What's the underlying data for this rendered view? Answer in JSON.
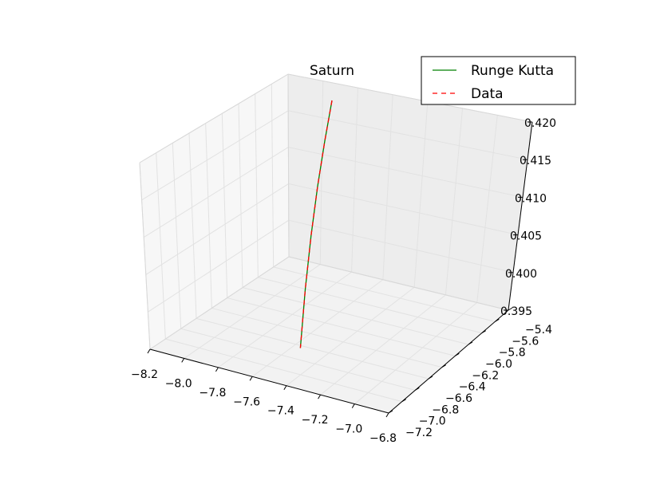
{
  "chart_data": {
    "type": "line",
    "projection": "3d",
    "title": "Saturn",
    "grid": true,
    "legend_placement": "top-right",
    "x_axis": {
      "range": [
        -8.2,
        -6.8
      ],
      "ticks": [
        "−8.2",
        "−8.0",
        "−7.8",
        "−7.6",
        "−7.4",
        "−7.2",
        "−7.0",
        "−6.8"
      ]
    },
    "y_axis": {
      "range": [
        -7.2,
        -5.4
      ],
      "ticks": [
        "−7.2",
        "−7.0",
        "−6.8",
        "−6.6",
        "−6.4",
        "−6.2",
        "−6.0",
        "−5.8",
        "−5.6",
        "−5.4"
      ]
    },
    "z_axis": {
      "range": [
        0.395,
        0.42
      ],
      "ticks": [
        "0.395",
        "0.400",
        "0.405",
        "0.410",
        "0.415",
        "0.420"
      ]
    },
    "series": [
      {
        "name": "Runge Kutta",
        "color": "#008000",
        "style": "solid",
        "x": [
          -7.9,
          -7.8,
          -7.7,
          -7.6,
          -7.5,
          -7.4
        ],
        "y": [
          -5.5,
          -5.8,
          -6.1,
          -6.4,
          -6.7,
          -7.0
        ],
        "z": [
          0.4185,
          0.4155,
          0.412,
          0.408,
          0.4035,
          0.3985
        ]
      },
      {
        "name": "Data",
        "color": "#ff0000",
        "style": "dashed",
        "x": [
          -7.9,
          -7.8,
          -7.7,
          -7.6,
          -7.5,
          -7.4
        ],
        "y": [
          -5.5,
          -5.8,
          -6.1,
          -6.4,
          -6.7,
          -7.0
        ],
        "z": [
          0.4185,
          0.4155,
          0.412,
          0.408,
          0.4035,
          0.3985
        ]
      }
    ]
  }
}
